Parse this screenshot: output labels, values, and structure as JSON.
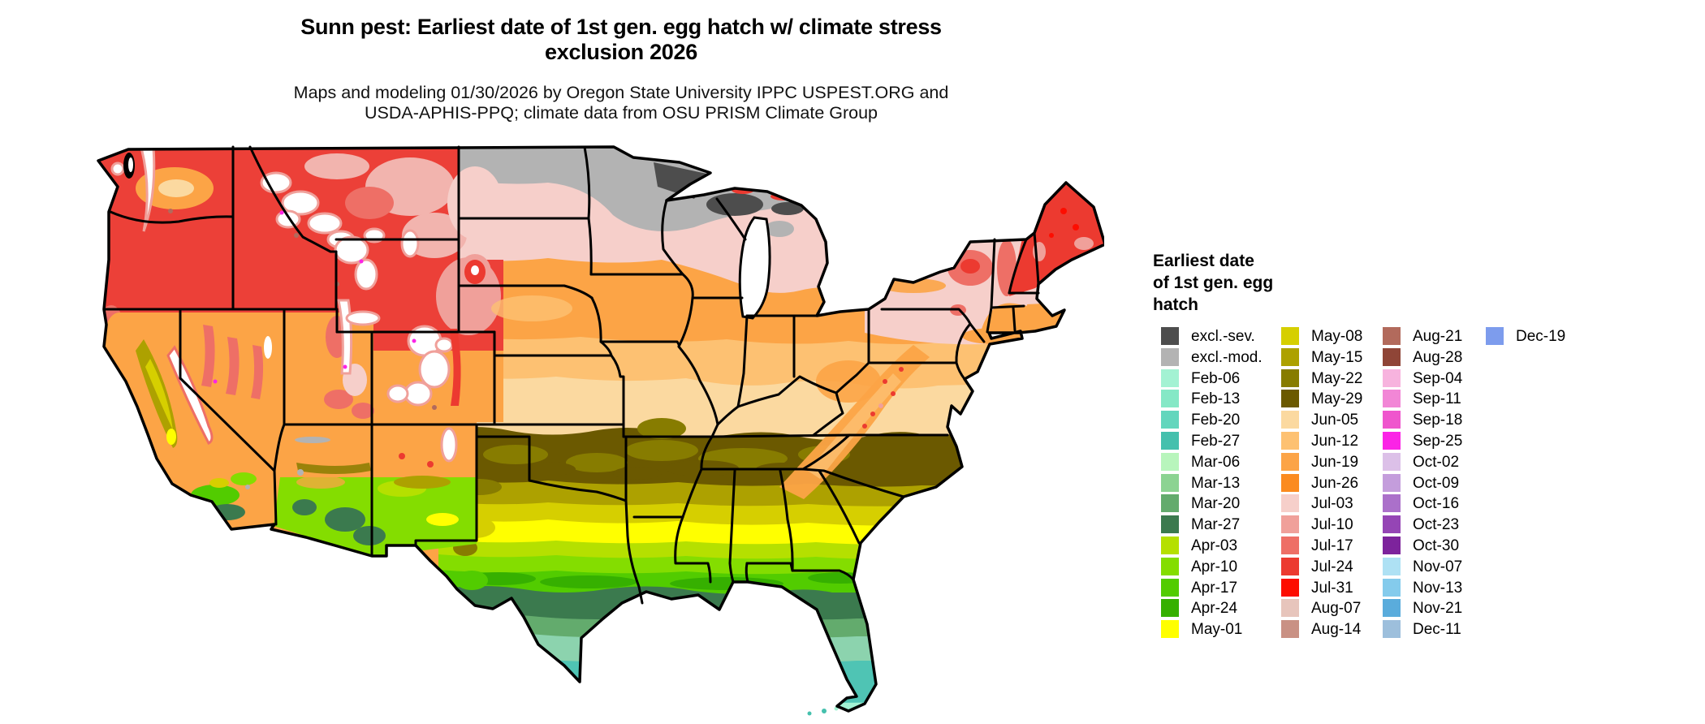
{
  "title": {
    "line1": "Sunn pest: Earliest date of 1st gen. egg hatch w/ climate stress",
    "line2": "exclusion 2026"
  },
  "subtitle": {
    "line1": "Maps and modeling 01/30/2026 by Oregon State University IPPC USPEST.ORG and",
    "line2": "USDA-APHIS-PPQ; climate data from OSU PRISM Climate Group"
  },
  "legend": {
    "title_lines": [
      "Earliest date",
      "of 1st gen. egg",
      "hatch"
    ],
    "row_height": 25.8,
    "column_offsets": [
      10,
      158,
      283,
      410
    ],
    "columns": [
      [
        {
          "label": "excl.-sev.",
          "color": "#4d4d4d"
        },
        {
          "label": "excl.-mod.",
          "color": "#b3b3b3"
        },
        {
          "label": "Feb-06",
          "color": "#a3f2d3"
        },
        {
          "label": "Feb-13",
          "color": "#85e8c6"
        },
        {
          "label": "Feb-20",
          "color": "#63d6bd"
        },
        {
          "label": "Feb-27",
          "color": "#45c0ad"
        },
        {
          "label": "Mar-06",
          "color": "#b8f5bc"
        },
        {
          "label": "Mar-13",
          "color": "#8cd392"
        },
        {
          "label": "Mar-20",
          "color": "#63ab6d"
        },
        {
          "label": "Mar-27",
          "color": "#3b7a4e"
        },
        {
          "label": "Apr-03",
          "color": "#b5e000"
        },
        {
          "label": "Apr-10",
          "color": "#84dd00"
        },
        {
          "label": "Apr-17",
          "color": "#52cc00"
        },
        {
          "label": "Apr-24",
          "color": "#36b000"
        },
        {
          "label": "May-01",
          "color": "#ffff00"
        }
      ],
      [
        {
          "label": "May-08",
          "color": "#d6cf00"
        },
        {
          "label": "May-15",
          "color": "#ada100"
        },
        {
          "label": "May-22",
          "color": "#877c00"
        },
        {
          "label": "May-29",
          "color": "#6b5900"
        },
        {
          "label": "Jun-05",
          "color": "#fbd9a0"
        },
        {
          "label": "Jun-12",
          "color": "#fdc172"
        },
        {
          "label": "Jun-19",
          "color": "#fca446"
        },
        {
          "label": "Jun-26",
          "color": "#fb8b20"
        },
        {
          "label": "Jul-03",
          "color": "#f6cfca"
        },
        {
          "label": "Jul-10",
          "color": "#f0a09a"
        },
        {
          "label": "Jul-17",
          "color": "#ee6f66"
        },
        {
          "label": "Jul-24",
          "color": "#ec3a30"
        },
        {
          "label": "Jul-31",
          "color": "#fd0d00"
        },
        {
          "label": "Aug-07",
          "color": "#e7c5bc"
        },
        {
          "label": "Aug-14",
          "color": "#c99184"
        }
      ],
      [
        {
          "label": "Aug-21",
          "color": "#b26a5c"
        },
        {
          "label": "Aug-28",
          "color": "#8f4537"
        },
        {
          "label": "Sep-04",
          "color": "#f7b3de"
        },
        {
          "label": "Sep-11",
          "color": "#f286d6"
        },
        {
          "label": "Sep-18",
          "color": "#ef55cd"
        },
        {
          "label": "Sep-25",
          "color": "#fb24e6"
        },
        {
          "label": "Oct-02",
          "color": "#dcc0e8"
        },
        {
          "label": "Oct-09",
          "color": "#c49ddc"
        },
        {
          "label": "Oct-16",
          "color": "#ab70ca"
        },
        {
          "label": "Oct-23",
          "color": "#9545b5"
        },
        {
          "label": "Oct-30",
          "color": "#7d239c"
        },
        {
          "label": "Nov-07",
          "color": "#aee1f4"
        },
        {
          "label": "Nov-13",
          "color": "#84cbec"
        },
        {
          "label": "Nov-21",
          "color": "#5aacdc"
        },
        {
          "label": "Dec-11",
          "color": "#9dbfdc"
        }
      ],
      [
        {
          "label": "Dec-19",
          "color": "#7d9ced"
        }
      ]
    ]
  }
}
